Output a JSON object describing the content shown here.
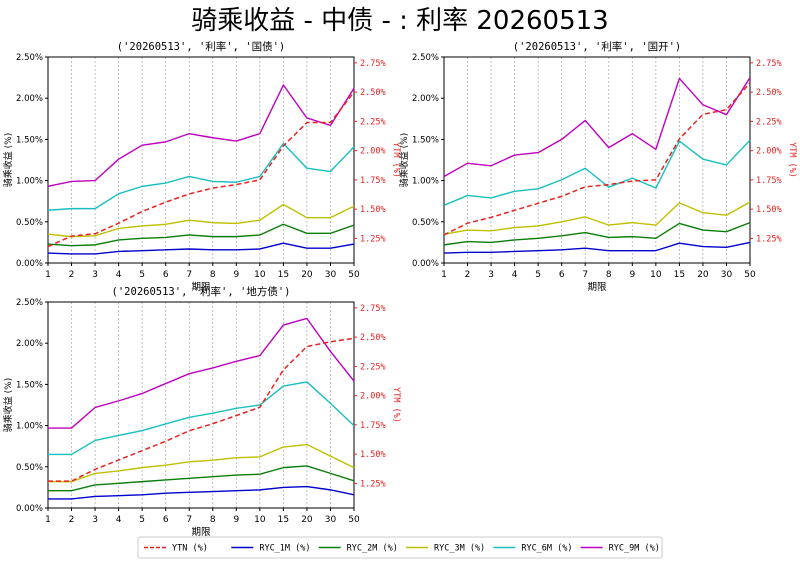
{
  "page": {
    "title": "骑乘收益 - 中债 - : 利率 20260513"
  },
  "axis_labels": {
    "xlabel": "期限",
    "ylabel_left": "骑乘收益 (%)",
    "ylabel_right": "YTM (%)"
  },
  "legend": [
    {
      "name": "YTN (%)",
      "color": "#e8231f",
      "dash": true
    },
    {
      "name": "RYC_1M (%)",
      "color": "#0000cc",
      "dash": false
    },
    {
      "name": "RYC_2M (%)",
      "color": "#0a7d0a",
      "dash": false
    },
    {
      "name": "RYC_3M (%)",
      "color": "#bfbf00",
      "dash": false
    },
    {
      "name": "RYC_6M (%)",
      "color": "#18bfbf",
      "dash": false
    },
    {
      "name": "RYC_9M (%)",
      "color": "#bf00bf",
      "dash": false
    }
  ],
  "chart_data": [
    {
      "type": "line",
      "title": "('20260513', '利率', '国债')",
      "categories": [
        "1",
        "2",
        "3",
        "4",
        "5",
        "6",
        "7",
        "8",
        "9",
        "10",
        "15",
        "20",
        "30",
        "50"
      ],
      "yticks_left": [
        "0.00%",
        "0.50%",
        "1.00%",
        "1.50%",
        "2.00%",
        "2.50%"
      ],
      "ylim_left": [
        0,
        2.5
      ],
      "yticks_right": [
        "1.25%",
        "1.50%",
        "1.75%",
        "2.00%",
        "2.25%",
        "2.50%",
        "2.75%"
      ],
      "ylim_right": [
        1.04,
        2.8
      ],
      "ytm": [
        1.18,
        1.27,
        1.29,
        1.38,
        1.48,
        1.56,
        1.63,
        1.68,
        1.71,
        1.75,
        2.04,
        2.24,
        2.24,
        2.5
      ],
      "series": [
        {
          "name": "RYC_1M (%)",
          "values": [
            0.12,
            0.11,
            0.11,
            0.14,
            0.15,
            0.16,
            0.17,
            0.16,
            0.16,
            0.17,
            0.24,
            0.18,
            0.18,
            0.23
          ]
        },
        {
          "name": "RYC_2M (%)",
          "values": [
            0.23,
            0.21,
            0.22,
            0.28,
            0.3,
            0.31,
            0.34,
            0.32,
            0.32,
            0.34,
            0.47,
            0.36,
            0.36,
            0.46
          ]
        },
        {
          "name": "RYC_3M (%)",
          "values": [
            0.35,
            0.32,
            0.33,
            0.42,
            0.45,
            0.47,
            0.52,
            0.49,
            0.48,
            0.52,
            0.71,
            0.55,
            0.55,
            0.69
          ]
        },
        {
          "name": "RYC_6M (%)",
          "values": [
            0.64,
            0.66,
            0.66,
            0.84,
            0.93,
            0.97,
            1.05,
            0.99,
            0.98,
            1.05,
            1.45,
            1.15,
            1.11,
            1.41
          ]
        },
        {
          "name": "RYC_9M (%)",
          "values": [
            0.93,
            0.99,
            1.0,
            1.26,
            1.43,
            1.47,
            1.57,
            1.52,
            1.48,
            1.57,
            2.16,
            1.76,
            1.67,
            2.12
          ]
        }
      ]
    },
    {
      "type": "line",
      "title": "('20260513', '利率', '国开')",
      "categories": [
        "1",
        "2",
        "3",
        "4",
        "5",
        "6",
        "7",
        "8",
        "9",
        "10",
        "15",
        "20",
        "30",
        "50"
      ],
      "yticks_left": [
        "0.00%",
        "0.50%",
        "1.00%",
        "1.50%",
        "2.00%",
        "2.50%"
      ],
      "ylim_left": [
        0,
        2.5
      ],
      "yticks_right": [
        "1.25%",
        "1.50%",
        "1.75%",
        "2.00%",
        "2.25%",
        "2.50%",
        "2.75%"
      ],
      "ylim_right": [
        1.04,
        2.8
      ],
      "ytm": [
        1.28,
        1.38,
        1.43,
        1.49,
        1.55,
        1.61,
        1.69,
        1.71,
        1.74,
        1.75,
        2.1,
        2.31,
        2.35,
        2.58
      ],
      "series": [
        {
          "name": "RYC_1M (%)",
          "values": [
            0.12,
            0.13,
            0.13,
            0.14,
            0.15,
            0.16,
            0.18,
            0.15,
            0.15,
            0.15,
            0.24,
            0.2,
            0.19,
            0.25
          ]
        },
        {
          "name": "RYC_2M (%)",
          "values": [
            0.22,
            0.26,
            0.25,
            0.28,
            0.3,
            0.33,
            0.37,
            0.31,
            0.32,
            0.3,
            0.48,
            0.4,
            0.38,
            0.49
          ]
        },
        {
          "name": "RYC_3M (%)",
          "values": [
            0.35,
            0.4,
            0.39,
            0.43,
            0.45,
            0.5,
            0.56,
            0.46,
            0.49,
            0.46,
            0.73,
            0.61,
            0.58,
            0.74
          ]
        },
        {
          "name": "RYC_6M (%)",
          "values": [
            0.7,
            0.82,
            0.79,
            0.87,
            0.9,
            1.01,
            1.15,
            0.92,
            1.03,
            0.91,
            1.48,
            1.26,
            1.19,
            1.49
          ]
        },
        {
          "name": "RYC_9M (%)",
          "values": [
            1.05,
            1.21,
            1.18,
            1.31,
            1.34,
            1.5,
            1.73,
            1.4,
            1.57,
            1.38,
            2.24,
            1.92,
            1.8,
            2.25
          ]
        }
      ]
    },
    {
      "type": "line",
      "title": "('20260513', '利率', '地方债')",
      "categories": [
        "1",
        "2",
        "3",
        "4",
        "5",
        "6",
        "7",
        "8",
        "9",
        "10",
        "15",
        "20",
        "30",
        "50"
      ],
      "yticks_left": [
        "0.00%",
        "0.50%",
        "1.00%",
        "1.50%",
        "2.00%",
        "2.50%"
      ],
      "ylim_left": [
        0,
        2.5
      ],
      "yticks_right": [
        "1.25%",
        "1.50%",
        "1.75%",
        "2.00%",
        "2.25%",
        "2.50%",
        "2.75%"
      ],
      "ylim_right": [
        1.04,
        2.8
      ],
      "ytm": [
        1.27,
        1.27,
        1.37,
        1.45,
        1.53,
        1.61,
        1.7,
        1.76,
        1.83,
        1.9,
        2.22,
        2.42,
        2.46,
        2.49
      ],
      "series": [
        {
          "name": "RYC_1M (%)",
          "values": [
            0.11,
            0.11,
            0.14,
            0.15,
            0.16,
            0.18,
            0.19,
            0.2,
            0.21,
            0.22,
            0.25,
            0.26,
            0.22,
            0.16
          ]
        },
        {
          "name": "RYC_2M (%)",
          "values": [
            0.21,
            0.21,
            0.28,
            0.3,
            0.32,
            0.34,
            0.36,
            0.38,
            0.4,
            0.41,
            0.49,
            0.51,
            0.42,
            0.33
          ]
        },
        {
          "name": "RYC_3M (%)",
          "values": [
            0.32,
            0.32,
            0.42,
            0.45,
            0.49,
            0.52,
            0.56,
            0.58,
            0.61,
            0.62,
            0.74,
            0.77,
            0.63,
            0.49
          ]
        },
        {
          "name": "RYC_6M (%)",
          "values": [
            0.65,
            0.65,
            0.82,
            0.88,
            0.94,
            1.02,
            1.1,
            1.15,
            1.21,
            1.25,
            1.48,
            1.53,
            1.27,
            1.0
          ]
        },
        {
          "name": "RYC_9M (%)",
          "values": [
            0.97,
            0.97,
            1.22,
            1.3,
            1.39,
            1.51,
            1.63,
            1.7,
            1.78,
            1.85,
            2.22,
            2.3,
            1.9,
            1.54
          ]
        }
      ]
    }
  ]
}
